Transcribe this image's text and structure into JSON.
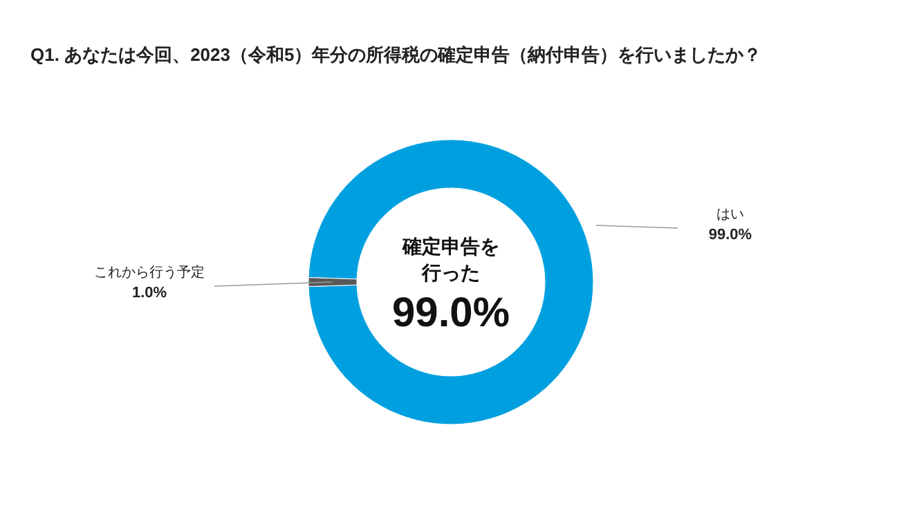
{
  "chart_data": {
    "type": "donut",
    "title": "Q1. あなたは今回、2023（令和5）年分の所得税の確定申告（納付申告）を行いましたか？",
    "categories": [
      "はい",
      "これから行う予定"
    ],
    "values": [
      99.0,
      1.0
    ],
    "colors": [
      "#00a0e0",
      "#595959"
    ],
    "value_labels": [
      "99.0%",
      "1.0%"
    ],
    "annotations": [
      "確定申告を",
      "行った",
      "99.0%"
    ]
  }
}
